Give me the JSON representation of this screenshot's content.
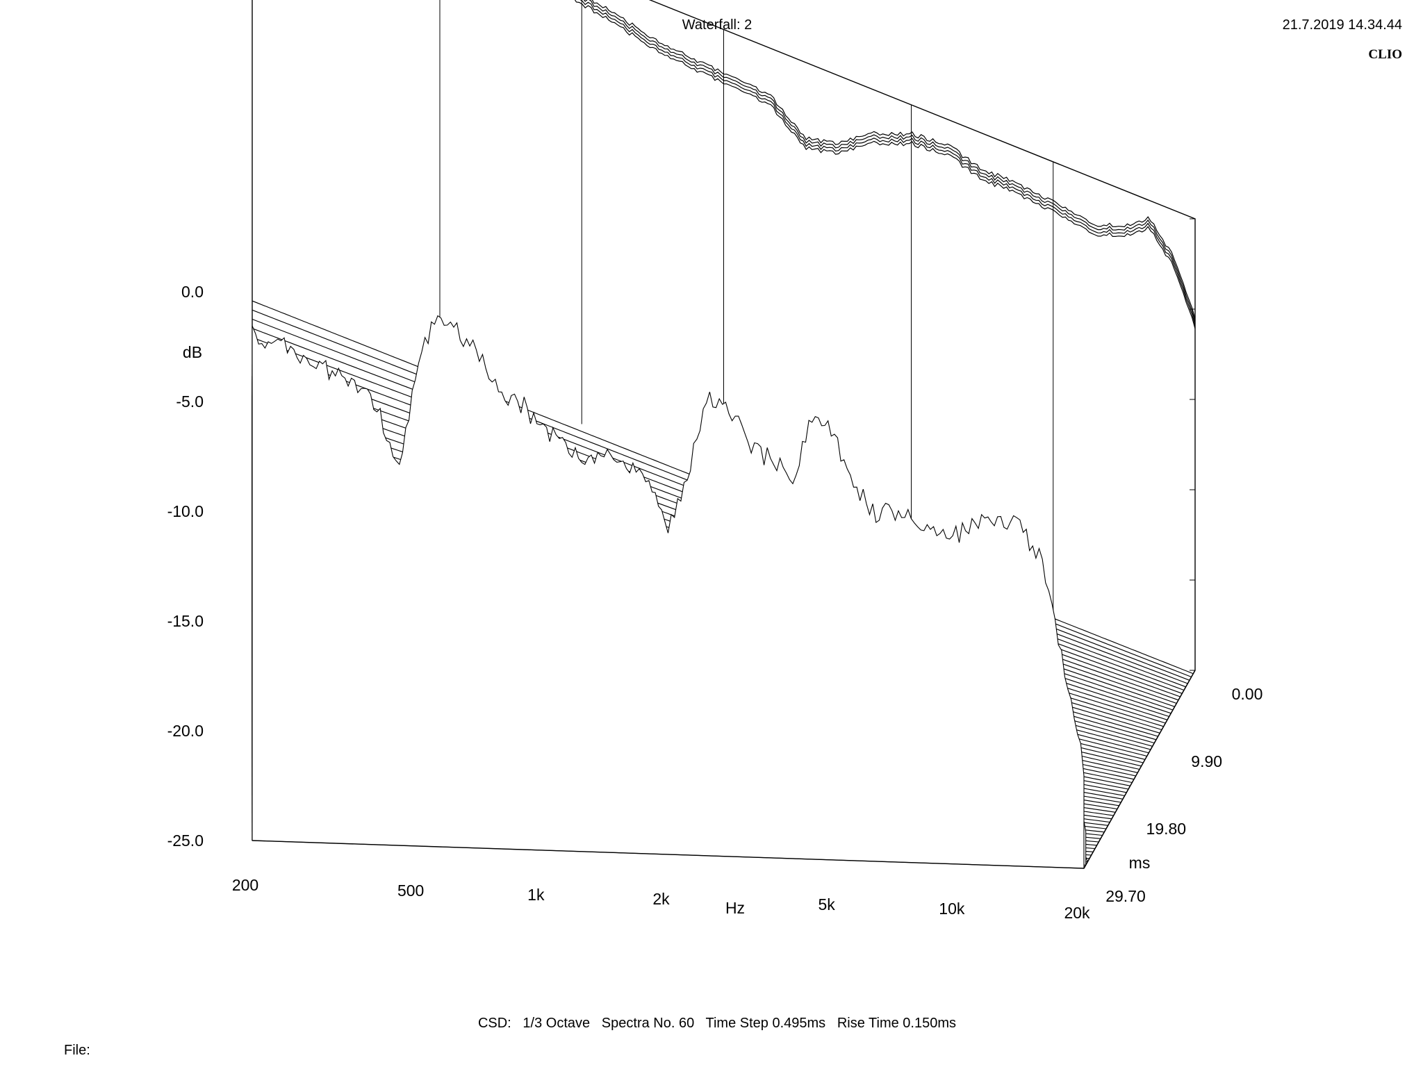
{
  "header": {
    "title": "Waterfall: 2",
    "timestamp": "21.7.2019 14.34.44",
    "brand": "CLIO"
  },
  "footer": {
    "info": "CSD:   1/3 Octave   Spectra No. 60   Time Step 0.495ms   Rise Time 0.150ms",
    "file_label": "File:"
  },
  "chart_data": {
    "type": "waterfall",
    "title": "Waterfall: 2",
    "xlabel": "Hz",
    "ylabel": "dB",
    "zlabel": "ms",
    "x_scale": "log",
    "xlim": [
      200,
      20000
    ],
    "ylim": [
      -25,
      0
    ],
    "zlim": [
      0,
      29.7
    ],
    "x_ticks": [
      {
        "value": 200,
        "label": "200"
      },
      {
        "value": 500,
        "label": "500"
      },
      {
        "value": 1000,
        "label": "1k"
      },
      {
        "value": 2000,
        "label": "2k"
      },
      {
        "value": 5000,
        "label": "5k"
      },
      {
        "value": 10000,
        "label": "10k"
      },
      {
        "value": 20000,
        "label": "20k"
      }
    ],
    "y_ticks": [
      {
        "value": 0,
        "label": "0.0"
      },
      {
        "value": -5,
        "label": "-5.0"
      },
      {
        "value": -10,
        "label": "-10.0"
      },
      {
        "value": -15,
        "label": "-15.0"
      },
      {
        "value": -20,
        "label": "-20.0"
      },
      {
        "value": -25,
        "label": "-25.0"
      }
    ],
    "z_ticks": [
      {
        "value": 0,
        "label": "0.00"
      },
      {
        "value": 9.9,
        "label": "9.90"
      },
      {
        "value": 19.8,
        "label": "19.80"
      },
      {
        "value": 29.7,
        "label": "29.70"
      }
    ],
    "spectra_count": 60,
    "time_step_ms": 0.495,
    "rise_time_ms": 0.15,
    "front_response": {
      "freqs": [
        200,
        250,
        300,
        350,
        400,
        450,
        500,
        550,
        600,
        700,
        800,
        900,
        1000,
        1100,
        1250,
        1400,
        1600,
        1800,
        2000,
        2250,
        2500,
        2800,
        3150,
        3500,
        4000,
        4500,
        5000,
        5600,
        6300,
        7100,
        8000,
        9000,
        10000,
        11200,
        12500,
        14000,
        16000,
        18000,
        20000
      ],
      "db": [
        -2.0,
        -2.6,
        -3.4,
        -4.0,
        -5.2,
        -7.8,
        -3.2,
        -0.8,
        -1.0,
        -2.6,
        -4.2,
        -4.8,
        -5.8,
        -6.4,
        -7.2,
        -6.8,
        -7.4,
        -8.2,
        -10.2,
        -7.4,
        -4.2,
        -4.4,
        -6.4,
        -6.8,
        -7.6,
        -4.6,
        -5.6,
        -7.8,
        -9.2,
        -9.0,
        -9.6,
        -9.8,
        -10.0,
        -9.4,
        -9.2,
        -9.6,
        -11.2,
        -16.0,
        -20.5
      ]
    },
    "back_response": {
      "freqs": [
        200,
        250,
        300,
        350,
        400,
        500,
        600,
        700,
        800,
        1000,
        1200,
        1500,
        2000,
        2500,
        3000,
        3500,
        4000,
        5000,
        6000,
        7000,
        8000,
        10000,
        12000,
        14000,
        16000,
        18000,
        20000
      ],
      "db": [
        0.0,
        -0.3,
        -0.5,
        -1.0,
        -1.6,
        -3.6,
        -2.0,
        -1.0,
        -0.6,
        -1.2,
        -1.6,
        -2.2,
        -2.4,
        -2.6,
        -4.2,
        -3.8,
        -2.6,
        -1.6,
        -1.4,
        -2.0,
        -2.0,
        -2.2,
        -2.6,
        -2.0,
        -1.0,
        -2.6,
        -5.5
      ]
    }
  }
}
